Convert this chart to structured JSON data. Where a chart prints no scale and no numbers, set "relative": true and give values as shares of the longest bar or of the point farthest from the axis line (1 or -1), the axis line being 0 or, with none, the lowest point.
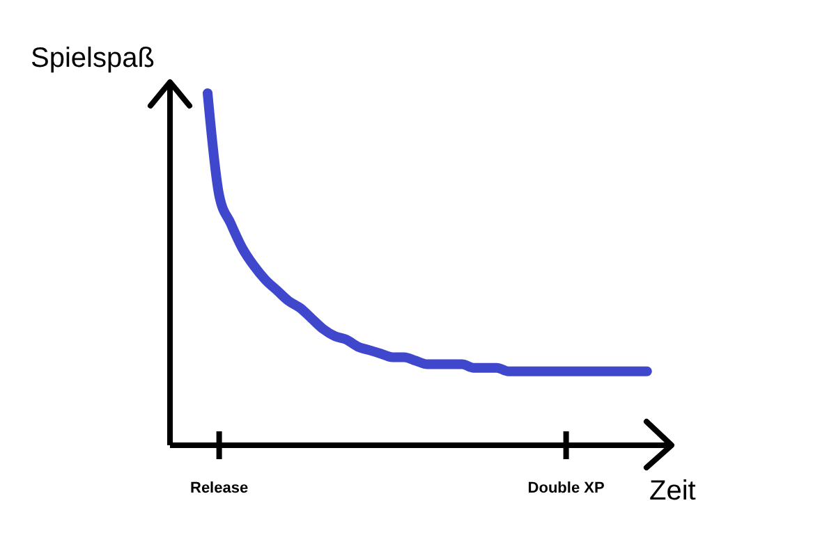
{
  "chart_data": {
    "type": "line",
    "relative": true,
    "xlabel": "Zeit",
    "ylabel": "Spielspaß",
    "categories": [
      null,
      "Release",
      null,
      null,
      null,
      null,
      null,
      null,
      null,
      null,
      null,
      null,
      null,
      null,
      null,
      null,
      null,
      null,
      null,
      null,
      null,
      null,
      null,
      null,
      null,
      null,
      null,
      null,
      null,
      null,
      null,
      "Double XP",
      null,
      null,
      null,
      null,
      null,
      null,
      null
    ],
    "series": [
      {
        "color": "#3f48cc",
        "values": [
          1,
          0.71,
          0.63,
          0.56,
          0.51,
          0.47,
          0.44,
          0.41,
          0.39,
          0.36,
          0.33,
          0.31,
          0.3,
          0.28,
          0.27,
          0.26,
          0.25,
          0.25,
          0.24,
          0.23,
          0.23,
          0.23,
          0.23,
          0.22,
          0.22,
          0.22,
          0.21,
          0.21,
          0.21,
          0.21,
          0.21,
          0.21,
          0.21,
          0.21,
          0.21,
          0.21,
          0.21,
          0.21,
          0.21
        ]
      }
    ],
    "grid": false,
    "marker": "none",
    "line_style": "solid"
  }
}
